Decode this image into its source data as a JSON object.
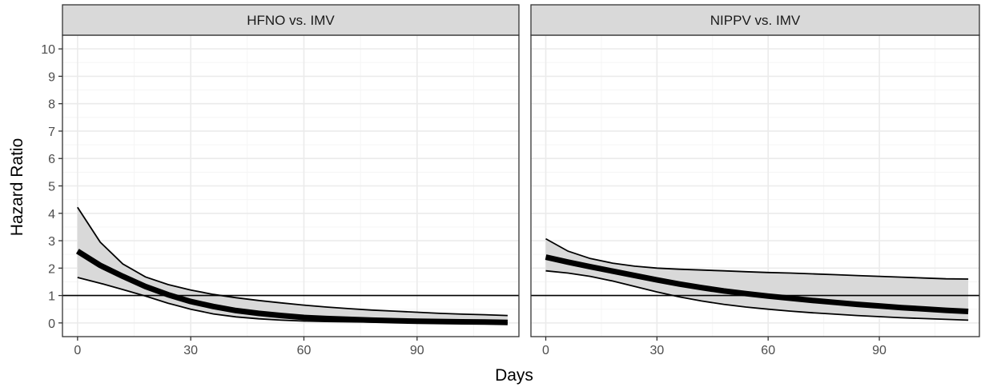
{
  "chart_data": {
    "type": "line",
    "xlabel": "Days",
    "ylabel": "Hazard Ratio",
    "xlim": [
      -4,
      117
    ],
    "ylim": [
      -0.5,
      10.5
    ],
    "x_ticks": [
      0,
      30,
      60,
      90
    ],
    "x_tick_labels": [
      "0",
      "30",
      "60",
      "90"
    ],
    "y_ticks": [
      0,
      1,
      2,
      3,
      4,
      5,
      6,
      7,
      8,
      9,
      10
    ],
    "y_tick_labels": [
      "0",
      "1",
      "2",
      "3",
      "4",
      "5",
      "6",
      "7",
      "8",
      "9",
      "10"
    ],
    "reference_line": 1,
    "grid": true,
    "colors": {
      "ribbon": "#d9d9d9",
      "estimate": "#000000",
      "panel_border": "#333333",
      "strip_fill": "#d9d9d9",
      "grid_major": "#ebebeb",
      "grid_minor": "#f5f5f5"
    },
    "panels": [
      {
        "title": "HFNO vs. IMV",
        "x": [
          0,
          6,
          12,
          18,
          24,
          30,
          36,
          42,
          48,
          54,
          60,
          66,
          72,
          78,
          84,
          90,
          96,
          102,
          108,
          114
        ],
        "estimate": [
          2.62,
          2.1,
          1.7,
          1.33,
          1.03,
          0.78,
          0.6,
          0.45,
          0.35,
          0.27,
          0.2,
          0.16,
          0.13,
          0.1,
          0.08,
          0.06,
          0.05,
          0.04,
          0.03,
          0.02
        ],
        "lower": [
          1.66,
          1.45,
          1.22,
          0.98,
          0.72,
          0.5,
          0.33,
          0.22,
          0.15,
          0.1,
          0.07,
          0.05,
          0.04,
          0.03,
          0.02,
          0.01,
          0.01,
          0.01,
          0.0,
          0.0
        ],
        "upper": [
          4.22,
          2.95,
          2.15,
          1.68,
          1.4,
          1.2,
          1.04,
          0.92,
          0.82,
          0.73,
          0.65,
          0.58,
          0.52,
          0.47,
          0.43,
          0.39,
          0.35,
          0.32,
          0.3,
          0.27
        ]
      },
      {
        "title": "NIPPV vs. IMV",
        "x": [
          0,
          6,
          12,
          18,
          24,
          30,
          36,
          42,
          48,
          54,
          60,
          66,
          72,
          78,
          84,
          90,
          96,
          102,
          108,
          114
        ],
        "estimate": [
          2.4,
          2.22,
          2.05,
          1.89,
          1.73,
          1.57,
          1.42,
          1.29,
          1.17,
          1.07,
          0.98,
          0.9,
          0.82,
          0.75,
          0.68,
          0.62,
          0.56,
          0.51,
          0.46,
          0.42
        ],
        "lower": [
          1.9,
          1.82,
          1.7,
          1.53,
          1.33,
          1.13,
          0.95,
          0.8,
          0.68,
          0.58,
          0.5,
          0.43,
          0.37,
          0.32,
          0.27,
          0.23,
          0.19,
          0.16,
          0.13,
          0.1
        ],
        "upper": [
          3.07,
          2.62,
          2.35,
          2.18,
          2.07,
          2.0,
          1.96,
          1.93,
          1.9,
          1.87,
          1.84,
          1.82,
          1.79,
          1.76,
          1.73,
          1.7,
          1.67,
          1.64,
          1.61,
          1.6
        ]
      }
    ]
  }
}
